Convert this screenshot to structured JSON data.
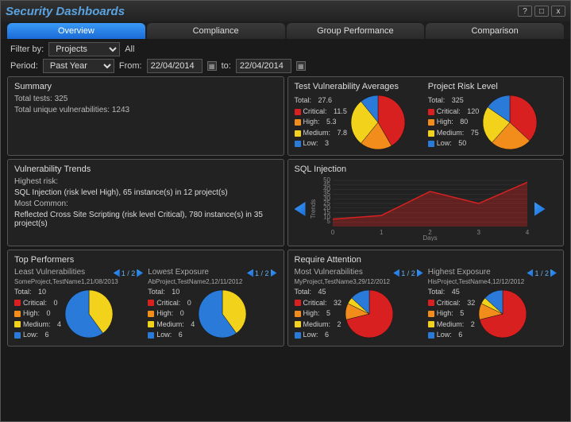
{
  "window": {
    "title": "Security Dashboards",
    "help": "?",
    "max": "□",
    "close": "x"
  },
  "tabs": {
    "t0": "Overview",
    "t1": "Compliance",
    "t2": "Group Performance",
    "t3": "Comparison"
  },
  "filter": {
    "by_label": "Filter by:",
    "by_value": "Projects",
    "all": "All",
    "period_label": "Period:",
    "period_value": "Past Year",
    "from_label": "From:",
    "from_value": "22/04/2014",
    "to_label": "to:",
    "to_value": "22/04/2014"
  },
  "summary": {
    "title": "Summary",
    "total_tests_label": "Total tests:",
    "total_tests": "325",
    "total_vuln_label": "Total unique vulnerabilities:",
    "total_vuln": "1243"
  },
  "colors": {
    "critical": "#d92020",
    "high": "#f28c1b",
    "medium": "#f2d21b",
    "low": "#2a7ad9",
    "panel_border": "#555555",
    "bg": "#222222",
    "accent": "#3a9af5"
  },
  "avg": {
    "title": "Test Vulnerability Averages",
    "total_label": "Total:",
    "total": "27.6",
    "critical_label": "Critical:",
    "critical": "11.5",
    "high_label": "High:",
    "high": "5.3",
    "medium_label": "Medium:",
    "medium": "7.8",
    "low_label": "Low:",
    "low": "3",
    "pie": {
      "values": [
        11.5,
        5.3,
        7.8,
        3
      ],
      "colors": [
        "#d92020",
        "#f28c1b",
        "#f2d21b",
        "#2a7ad9"
      ]
    }
  },
  "risk": {
    "title": "Project Risk Level",
    "total_label": "Total:",
    "total": "325",
    "critical_label": "Critical:",
    "critical": "120",
    "high_label": "High:",
    "high": "80",
    "medium_label": "Medium:",
    "medium": "75",
    "low_label": "Low:",
    "low": "50",
    "pie": {
      "values": [
        120,
        80,
        75,
        50
      ],
      "colors": [
        "#d92020",
        "#f28c1b",
        "#f2d21b",
        "#2a7ad9"
      ]
    }
  },
  "trends": {
    "title": "Vulnerability Trends",
    "highest_label": "Highest risk:",
    "highest": "SQL Injection (risk level High), 65 instance(s) in 12 project(s)",
    "common_label": "Most Common:",
    "common": "Reflected Cross Site Scripting (risk level Critical), 780 instance(s) in 35 project(s)"
  },
  "chart": {
    "title": "SQL Injection",
    "y_label": "Trends",
    "x_label": "Days",
    "x_ticks": [
      "0",
      "1",
      "2",
      "3",
      "4"
    ],
    "y_ticks": [
      "5",
      "10",
      "15",
      "20",
      "25",
      "30",
      "35",
      "40",
      "45",
      "50"
    ],
    "ylim": [
      0,
      50
    ],
    "xlim": [
      0,
      4
    ],
    "series": {
      "x": [
        0,
        1,
        2,
        3,
        4
      ],
      "y": [
        8,
        12,
        38,
        25,
        48
      ],
      "color": "#d92020",
      "fill_opacity": 0.35
    }
  },
  "top": {
    "title": "Top Performers",
    "least": {
      "title": "Least Vulnerabilities",
      "sub": "SomeProject,TestName1,21/08/2013",
      "pager": "1 / 2",
      "total_label": "Total:",
      "total": "10",
      "critical_label": "Critical:",
      "critical": "0",
      "high_label": "High:",
      "high": "0",
      "medium_label": "Medium:",
      "medium": "4",
      "low_label": "Low:",
      "low": "6",
      "pie": {
        "values": [
          0.0001,
          0.0001,
          4,
          6
        ],
        "colors": [
          "#d92020",
          "#f28c1b",
          "#f2d21b",
          "#2a7ad9"
        ]
      }
    },
    "lowest": {
      "title": "Lowest Exposure",
      "sub": "AbProject,TestName2,12/11/2012",
      "pager": "1 / 2",
      "total_label": "Total:",
      "total": "10",
      "critical_label": "Critical:",
      "critical": "0",
      "high_label": "High:",
      "high": "0",
      "medium_label": "Medium:",
      "medium": "4",
      "low_label": "Low:",
      "low": "6",
      "pie": {
        "values": [
          0.0001,
          0.0001,
          4,
          6
        ],
        "colors": [
          "#d92020",
          "#f28c1b",
          "#f2d21b",
          "#2a7ad9"
        ]
      }
    }
  },
  "attn": {
    "title": "Require Attention",
    "most": {
      "title": "Most Vulnerabilities",
      "sub": "MyProject,TestName3,29/12/2012",
      "pager": "1 / 2",
      "total_label": "Total:",
      "total": "45",
      "critical_label": "Critical:",
      "critical": "32",
      "high_label": "High:",
      "high": "5",
      "medium_label": "Medium:",
      "medium": "2",
      "low_label": "Low:",
      "low": "6",
      "pie": {
        "values": [
          32,
          5,
          2,
          6
        ],
        "colors": [
          "#d92020",
          "#f28c1b",
          "#f2d21b",
          "#2a7ad9"
        ]
      }
    },
    "highest": {
      "title": "Highest Exposure",
      "sub": "HisProject,TestName4,12/12/2012",
      "pager": "1 / 2",
      "total_label": "Total:",
      "total": "45",
      "critical_label": "Critical:",
      "critical": "32",
      "high_label": "High:",
      "high": "5",
      "medium_label": "Medium:",
      "medium": "2",
      "low_label": "Low:",
      "low": "6",
      "pie": {
        "values": [
          32,
          5,
          2,
          6
        ],
        "colors": [
          "#d92020",
          "#f28c1b",
          "#f2d21b",
          "#2a7ad9"
        ]
      }
    }
  }
}
